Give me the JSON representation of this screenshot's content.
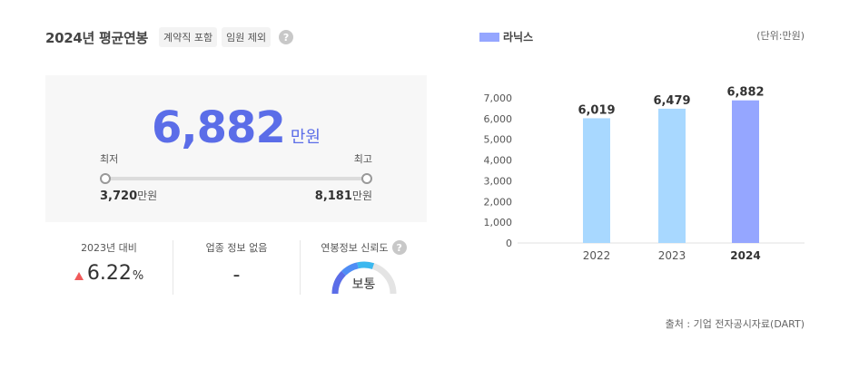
{
  "header": {
    "title": "2024년 평균연봉",
    "tags": [
      "계약직 포함",
      "임원 제외"
    ],
    "help_icon": "question-icon"
  },
  "salary": {
    "average": "6,882",
    "average_unit": "만원",
    "min_label": "최저",
    "max_label": "최고",
    "min_value": "3,720",
    "max_value": "8,181",
    "value_unit": "만원"
  },
  "stats": {
    "change_label": "2023년 대비",
    "change_value": "6.22",
    "change_unit": "%",
    "industry_label": "업종 정보 없음",
    "industry_value": "-",
    "reliability_label": "연봉정보 신뢰도",
    "reliability_value": "보통"
  },
  "legend": {
    "label": "라닉스"
  },
  "unit_note": "(단위:만원)",
  "source": "출처 : 기업 전자공시자료(DART)",
  "colors": {
    "accent": "#5b6de8",
    "bar_past": "#a8d8ff",
    "bar_current": "#95a6ff",
    "up": "#f05a5a"
  },
  "chart_data": {
    "type": "bar",
    "categories": [
      "2022",
      "2023",
      "2024"
    ],
    "values": [
      6019,
      6479,
      6882
    ],
    "value_labels": [
      "6,019",
      "6,479",
      "6,882"
    ],
    "yticks": [
      "0",
      "1,000",
      "2,000",
      "3,000",
      "4,000",
      "5,000",
      "6,000",
      "7,000"
    ],
    "ylim": [
      0,
      7000
    ],
    "grid": false
  }
}
